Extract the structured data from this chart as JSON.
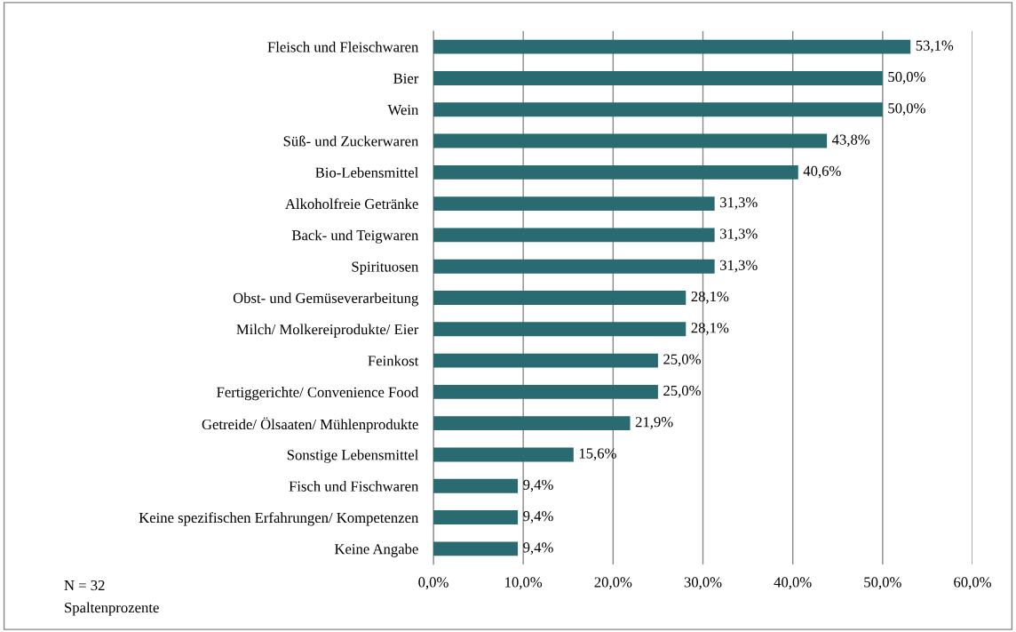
{
  "chart_data": {
    "type": "bar",
    "orientation": "horizontal",
    "categories": [
      "Fleisch und Fleischwaren",
      "Bier",
      "Wein",
      "Süß- und Zuckerwaren",
      "Bio-Lebensmittel",
      "Alkoholfreie Getränke",
      "Back- und Teigwaren",
      "Spirituosen",
      "Obst- und Gemüseverarbeitung",
      "Milch/ Molkereiprodukte/ Eier",
      "Feinkost",
      "Fertiggerichte/ Convenience Food",
      "Getreide/ Ölsaaten/ Mühlenprodukte",
      "Sonstige Lebensmittel",
      "Fisch und Fischwaren",
      "Keine spezifischen Erfahrungen/ Kompetenzen",
      "Keine Angabe"
    ],
    "values": [
      53.1,
      50.0,
      50.0,
      43.8,
      40.6,
      31.3,
      31.3,
      31.3,
      28.1,
      28.1,
      25.0,
      25.0,
      21.9,
      15.6,
      9.4,
      9.4,
      9.4
    ],
    "value_labels": [
      "53,1%",
      "50,0%",
      "50,0%",
      "43,8%",
      "40,6%",
      "31,3%",
      "31,3%",
      "31,3%",
      "28,1%",
      "28,1%",
      "25,0%",
      "25,0%",
      "21,9%",
      "15,6%",
      "9,4%",
      "9,4%",
      "9,4%"
    ],
    "color": "#2a6b72",
    "xlim": [
      0,
      60
    ],
    "xticks": [
      {
        "value": 0,
        "label": "0,0%"
      },
      {
        "value": 10,
        "label": "10,0%"
      },
      {
        "value": 20,
        "label": "20,0%"
      },
      {
        "value": 30,
        "label": "30,0%"
      },
      {
        "value": 40,
        "label": "40,0%"
      },
      {
        "value": 50,
        "label": "50,0%"
      },
      {
        "value": 60,
        "label": "60,0%"
      }
    ],
    "grid": "x",
    "annotations": [
      "N = 32",
      "Spaltenprozente"
    ]
  }
}
